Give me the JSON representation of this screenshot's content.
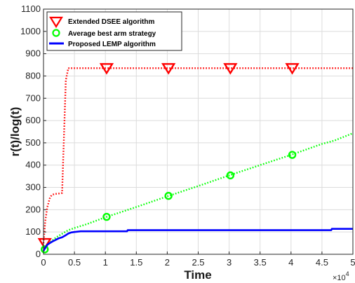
{
  "chart_data": {
    "type": "line",
    "xlabel": "Time",
    "ylabel": "r(t)/log(t)",
    "x_exponent": {
      "base": "×10",
      "power": "4"
    },
    "xlim": [
      0,
      5
    ],
    "ylim": [
      0,
      1100
    ],
    "xticks": [
      0,
      0.5,
      1,
      1.5,
      2,
      2.5,
      3,
      3.5,
      4,
      4.5,
      5
    ],
    "xtick_labels": [
      "0",
      "0.5",
      "1",
      "1.5",
      "2",
      "2.5",
      "3",
      "3.5",
      "4",
      "4.5",
      "5"
    ],
    "yticks": [
      0,
      100,
      200,
      300,
      400,
      500,
      600,
      700,
      800,
      900,
      1000,
      1100
    ],
    "ytick_labels": [
      "0",
      "100",
      "200",
      "300",
      "400",
      "500",
      "600",
      "700",
      "800",
      "900",
      "1000",
      "1100"
    ],
    "grid": true,
    "legend_position": "top-left",
    "series": [
      {
        "name": "Extended DSEE algorithm",
        "color": "#ff0000",
        "line_style": "dotted",
        "marker": "triangle-down",
        "x": [
          0,
          0.03,
          0.06,
          0.08,
          0.1,
          0.13,
          0.17,
          0.22,
          0.27,
          0.3,
          0.33,
          0.36,
          0.4,
          1,
          2,
          3,
          4,
          5
        ],
        "y": [
          50,
          150,
          210,
          230,
          250,
          265,
          270,
          272,
          273,
          275,
          520,
          780,
          835,
          835,
          835,
          835,
          835,
          835
        ],
        "marker_x": [
          0.02,
          1.02,
          2.02,
          3.02,
          4.02
        ],
        "marker_y": [
          50,
          835,
          835,
          835,
          835
        ]
      },
      {
        "name": "Average best arm strategy",
        "color": "#00ff00",
        "line_style": "dotted",
        "marker": "circle",
        "x": [
          0,
          0.05,
          0.1,
          0.2,
          0.3,
          0.4,
          0.5,
          0.7,
          1,
          1.5,
          2,
          2.5,
          3,
          3.5,
          4,
          4.5,
          4.7,
          5
        ],
        "y": [
          15,
          35,
          52,
          75,
          92,
          108,
          118,
          135,
          166,
          212,
          260,
          306,
          354,
          400,
          446,
          495,
          510,
          543
        ],
        "marker_x": [
          0.02,
          1.02,
          2.02,
          3.02,
          4.02
        ],
        "marker_y": [
          22,
          168,
          262,
          354,
          446
        ]
      },
      {
        "name": "Proposed LEMP algorithm",
        "color": "#0000ff",
        "line_style": "solid",
        "x": [
          0,
          0.03,
          0.06,
          0.1,
          0.15,
          0.2,
          0.25,
          0.3,
          0.35,
          0.4,
          0.45,
          0.5,
          0.6,
          1.35,
          1.36,
          4.65,
          4.66,
          5
        ],
        "y": [
          15,
          30,
          42,
          50,
          58,
          65,
          72,
          76,
          84,
          93,
          98,
          100,
          103,
          103,
          108,
          108,
          114,
          114
        ]
      }
    ]
  }
}
